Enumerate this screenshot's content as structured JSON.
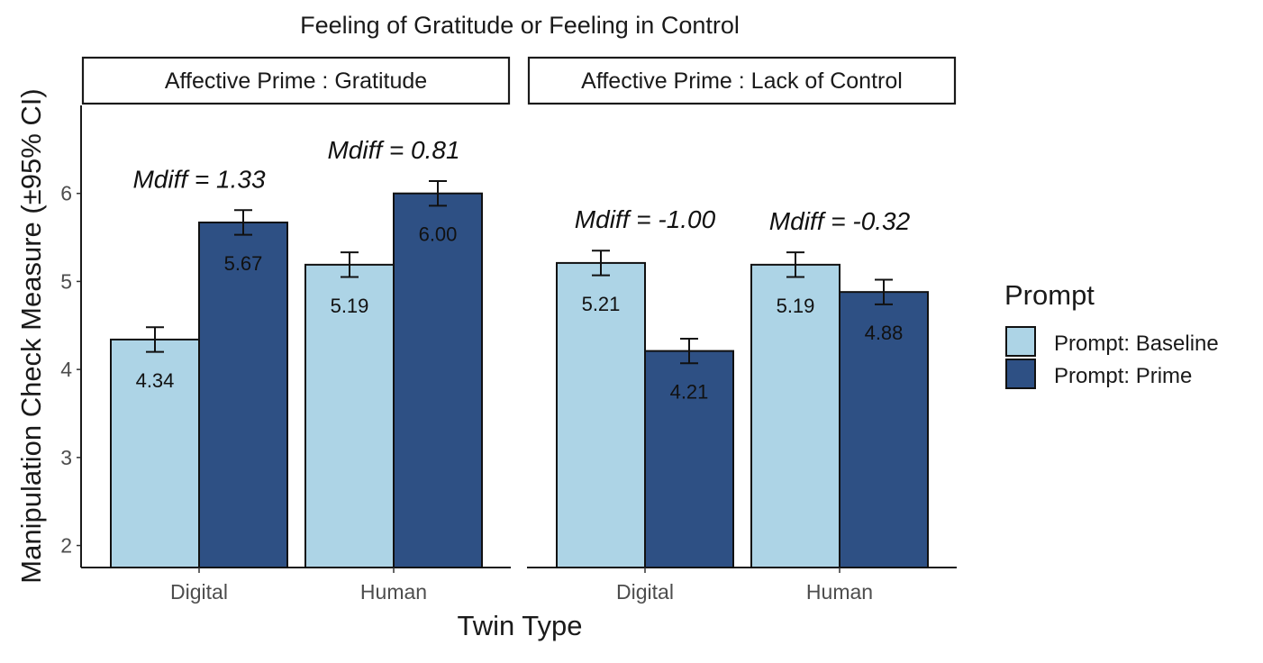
{
  "chart_data": {
    "type": "bar",
    "title": "Feeling of Gratitude or Feeling in Control",
    "xlabel": "Twin Type",
    "ylabel": "Manipulation Check Measure (±95% CI)",
    "ylim": [
      1.75,
      7.0
    ],
    "yticks": [
      2,
      3,
      4,
      5,
      6
    ],
    "categories": [
      "Digital",
      "Human"
    ],
    "legend": {
      "title": "Prompt",
      "position": "right",
      "entries": [
        {
          "name": "Prompt: Baseline",
          "color": "#add4e6"
        },
        {
          "name": "Prompt: Prime",
          "color": "#2e5084"
        }
      ]
    },
    "panels": [
      {
        "strip": "Affective Prime : Gratitude",
        "groups": [
          {
            "category": "Digital",
            "mdiff": "Mdiff = 1.33",
            "bars": [
              {
                "series": "Prompt: Baseline",
                "value": 4.34,
                "label": "4.34",
                "ci": [
                  4.2,
                  4.48
                ]
              },
              {
                "series": "Prompt: Prime",
                "value": 5.67,
                "label": "5.67",
                "ci": [
                  5.53,
                  5.81
                ]
              }
            ]
          },
          {
            "category": "Human",
            "mdiff": "Mdiff = 0.81",
            "bars": [
              {
                "series": "Prompt: Baseline",
                "value": 5.19,
                "label": "5.19",
                "ci": [
                  5.05,
                  5.33
                ]
              },
              {
                "series": "Prompt: Prime",
                "value": 6.0,
                "label": "6.00",
                "ci": [
                  5.86,
                  6.14
                ]
              }
            ]
          }
        ]
      },
      {
        "strip": "Affective Prime : Lack of Control",
        "groups": [
          {
            "category": "Digital",
            "mdiff": "Mdiff = -1.00",
            "bars": [
              {
                "series": "Prompt: Baseline",
                "value": 5.21,
                "label": "5.21",
                "ci": [
                  5.07,
                  5.35
                ]
              },
              {
                "series": "Prompt: Prime",
                "value": 4.21,
                "label": "4.21",
                "ci": [
                  4.07,
                  4.35
                ]
              }
            ]
          },
          {
            "category": "Human",
            "mdiff": "Mdiff = -0.32",
            "bars": [
              {
                "series": "Prompt: Baseline",
                "value": 5.19,
                "label": "5.19",
                "ci": [
                  5.05,
                  5.33
                ]
              },
              {
                "series": "Prompt: Prime",
                "value": 4.88,
                "label": "4.88",
                "ci": [
                  4.74,
                  5.02
                ]
              }
            ]
          }
        ]
      }
    ]
  }
}
